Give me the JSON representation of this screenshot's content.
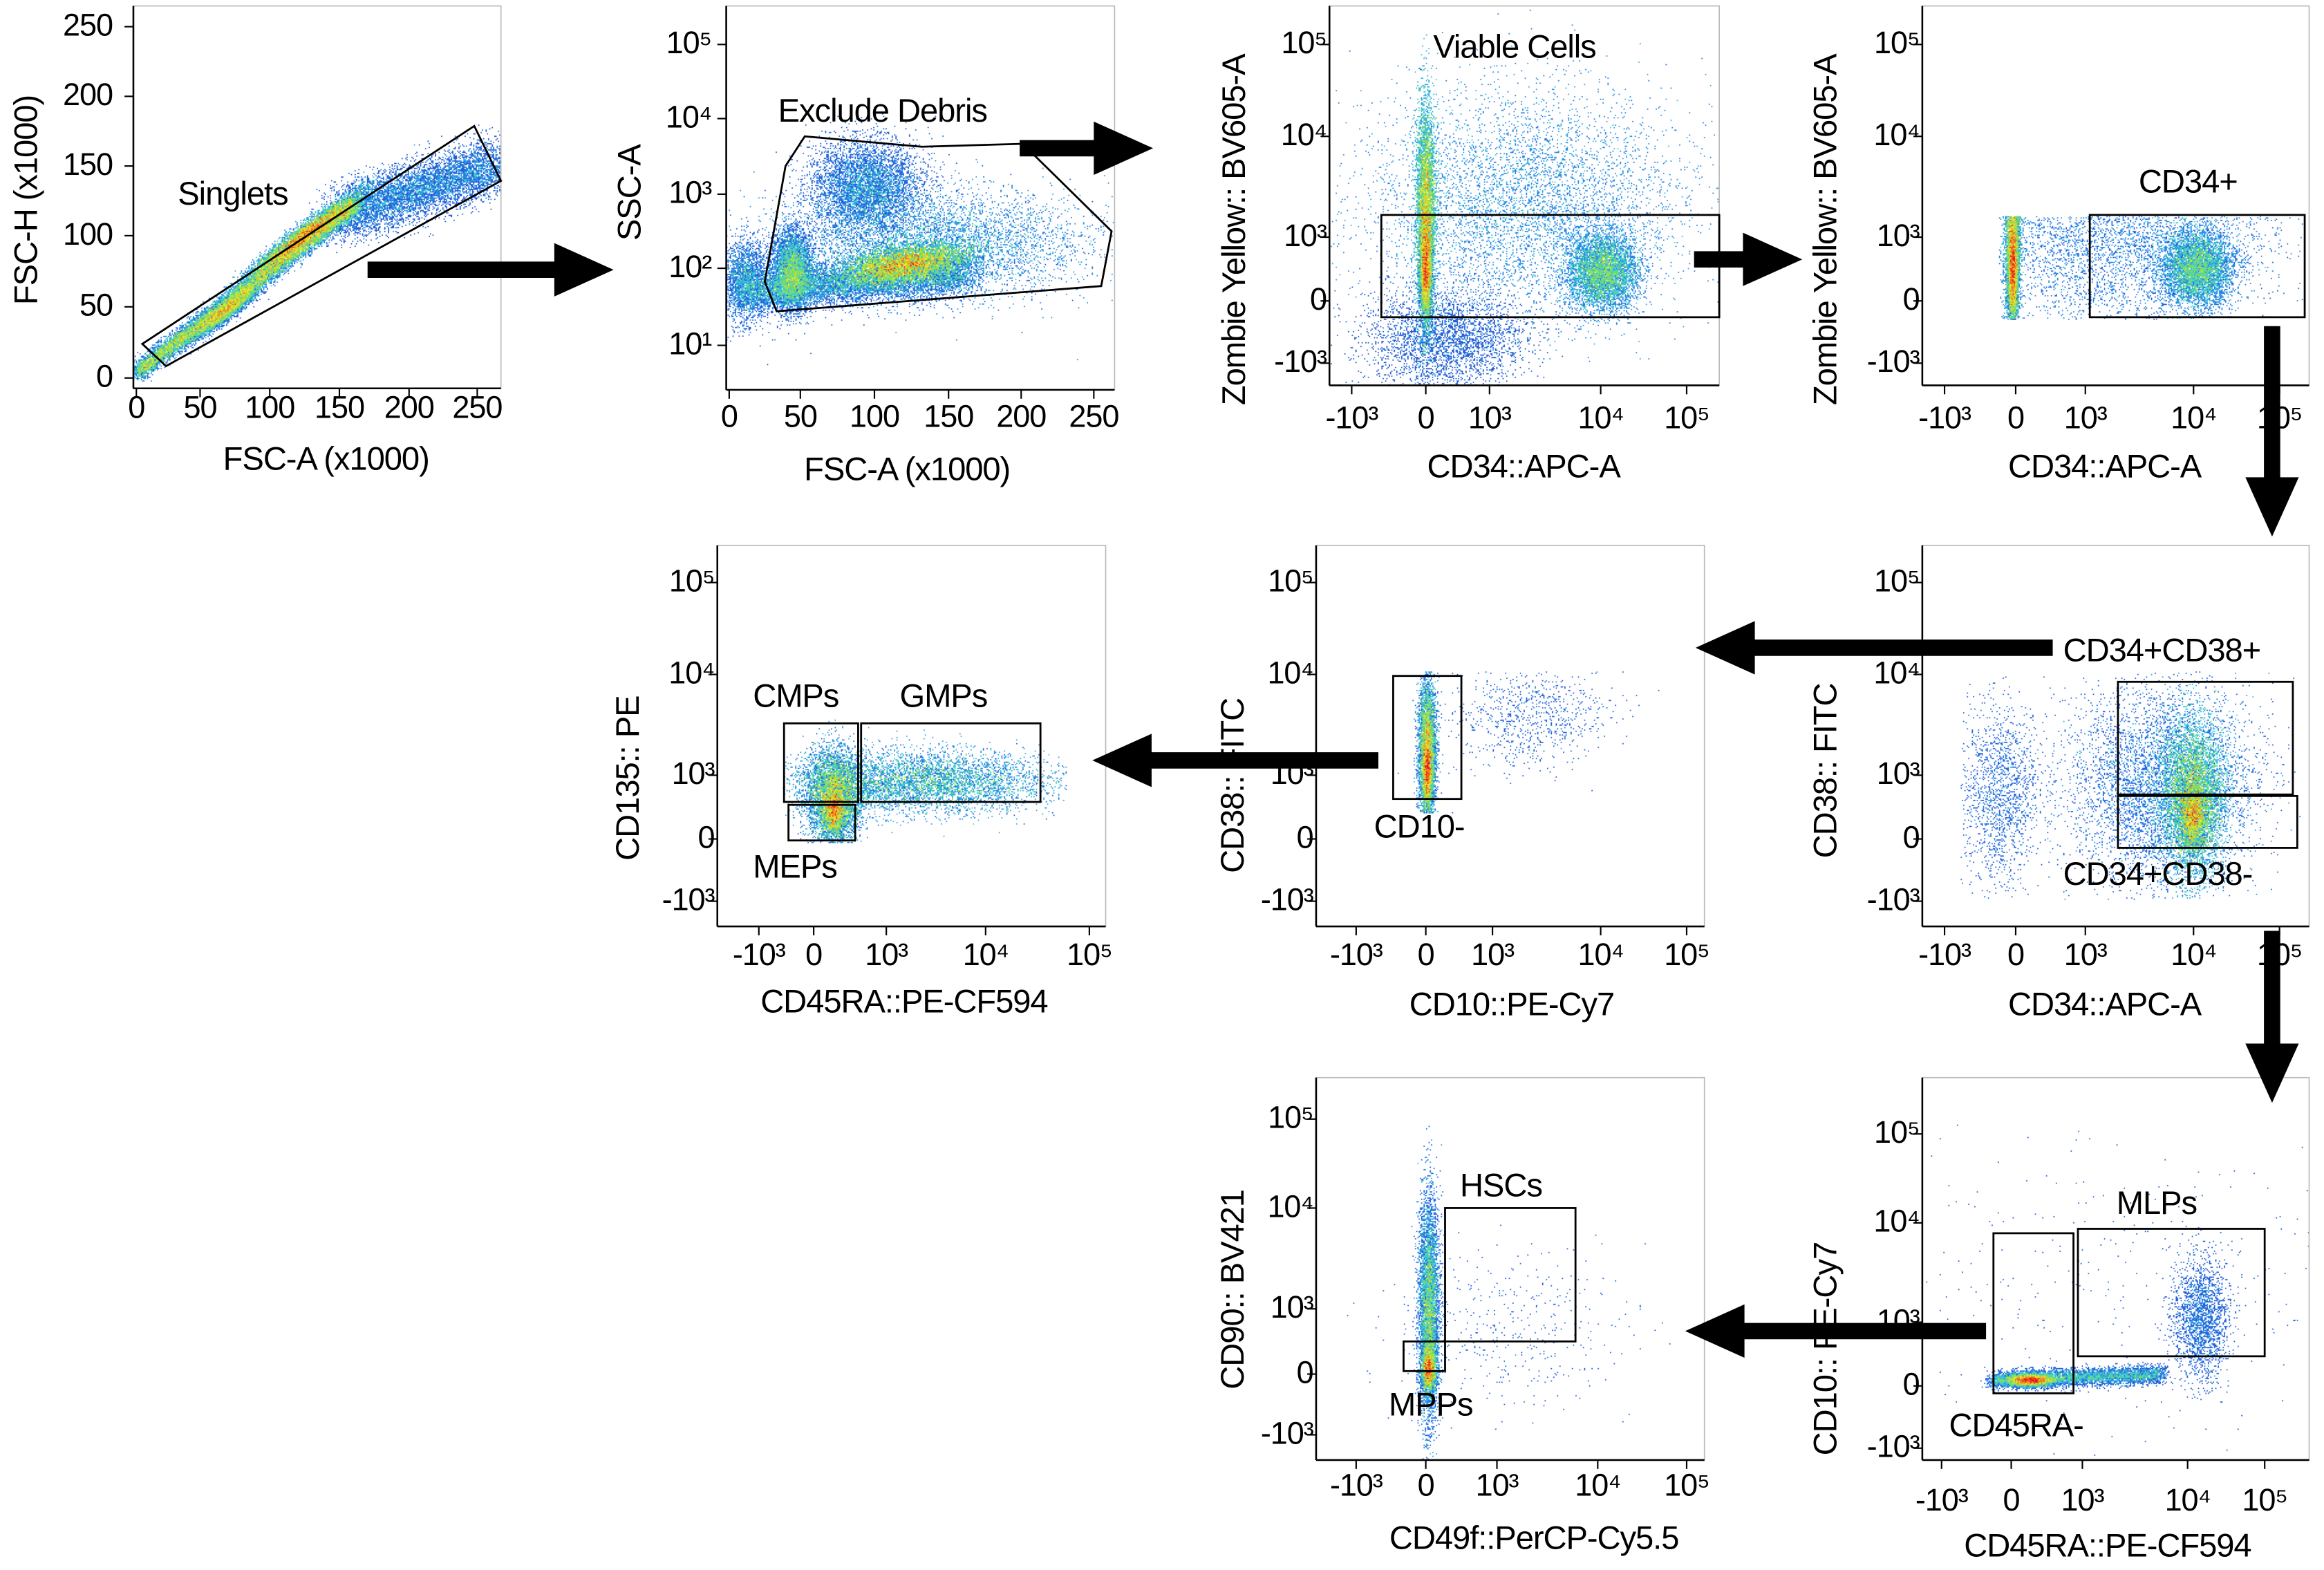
{
  "figure": {
    "panels": [
      {
        "id": "singlets",
        "x_label": "FSC-A (x1000)",
        "y_label": "FSC-H (x1000)",
        "x_ticks": [
          "0",
          "50",
          "100",
          "150",
          "200",
          "250"
        ],
        "y_ticks": [
          "250",
          "200",
          "150",
          "100",
          "50",
          "0"
        ],
        "gates": [
          {
            "label": "Singlets"
          }
        ]
      },
      {
        "id": "exclude-debris",
        "x_label": "FSC-A (x1000)",
        "y_label": "SSC-A",
        "x_ticks": [
          "0",
          "50",
          "100",
          "150",
          "200",
          "250"
        ],
        "y_ticks": [
          "10⁵",
          "10⁴",
          "10³",
          "10²",
          "10¹"
        ],
        "gates": [
          {
            "label": "Exclude Debris"
          }
        ]
      },
      {
        "id": "viable-cells",
        "x_label": "CD34::APC-A",
        "y_label": "Zombie Yellow:: BV605-A",
        "x_ticks": [
          "-10³",
          "0",
          "10³",
          "10⁴",
          "10⁵"
        ],
        "y_ticks": [
          "10⁵",
          "10⁴",
          "10³",
          "0",
          "-10³"
        ],
        "gates": [
          {
            "label": "Viable Cells"
          }
        ]
      },
      {
        "id": "cd34-positive",
        "x_label": "CD34::APC-A",
        "y_label": "Zombie Yellow:: BV605-A",
        "x_ticks": [
          "-10³",
          "0",
          "10³",
          "10⁴",
          "10⁵"
        ],
        "y_ticks": [
          "10⁵",
          "10⁴",
          "10³",
          "0",
          "-10³"
        ],
        "gates": [
          {
            "label": "CD34+"
          }
        ]
      },
      {
        "id": "cd34-cd38",
        "x_label": "CD34::APC-A",
        "y_label": "CD38:: FITC",
        "x_ticks": [
          "-10³",
          "0",
          "10³",
          "10⁴",
          "10⁵"
        ],
        "y_ticks": [
          "10⁵",
          "10⁴",
          "10³",
          "0",
          "-10³"
        ],
        "gates": [
          {
            "label": "CD34+CD38+"
          },
          {
            "label": "CD34+CD38-"
          }
        ]
      },
      {
        "id": "cd10-negative",
        "x_label": "CD10::PE-Cy7",
        "y_label": "CD38:: FITC",
        "x_ticks": [
          "-10³",
          "0",
          "10³",
          "10⁴",
          "10⁵"
        ],
        "y_ticks": [
          "10⁵",
          "10⁴",
          "10³",
          "0",
          "-10³"
        ],
        "gates": [
          {
            "label": "CD10-"
          }
        ]
      },
      {
        "id": "progenitors",
        "x_label": "CD45RA::PE-CF594",
        "y_label": "CD135:: PE",
        "x_ticks": [
          "-10³",
          "0",
          "10³",
          "10⁴",
          "10⁵"
        ],
        "y_ticks": [
          "10⁵",
          "10⁴",
          "10³",
          "0",
          "-10³"
        ],
        "gates": [
          {
            "label": "CMPs"
          },
          {
            "label": "GMPs"
          },
          {
            "label": "MEPs"
          }
        ]
      },
      {
        "id": "mlps",
        "x_label": "CD45RA::PE-CF594",
        "y_label": "CD10:: PE-Cy7",
        "x_ticks": [
          "-10³",
          "0",
          "10³",
          "10⁴",
          "10⁵"
        ],
        "y_ticks": [
          "10⁵",
          "10⁴",
          "10³",
          "0",
          "-10³"
        ],
        "gates": [
          {
            "label": "CD45RA-"
          },
          {
            "label": "MLPs"
          }
        ]
      },
      {
        "id": "hscs",
        "x_label": "CD49f::PerCP-Cy5.5",
        "y_label": "CD90:: BV421",
        "x_ticks": [
          "-10³",
          "0",
          "10³",
          "10⁴",
          "10⁵"
        ],
        "y_ticks": [
          "10⁵",
          "10⁴",
          "10³",
          "0",
          "-10³"
        ],
        "gates": [
          {
            "label": "HSCs"
          },
          {
            "label": "MPPs"
          }
        ]
      }
    ],
    "colors": {
      "arrow": "#000000",
      "gate": "#000000",
      "density_low": "#1c2d9e",
      "density_mid": "#3cd0e0",
      "density_high": "#e8121a"
    }
  }
}
